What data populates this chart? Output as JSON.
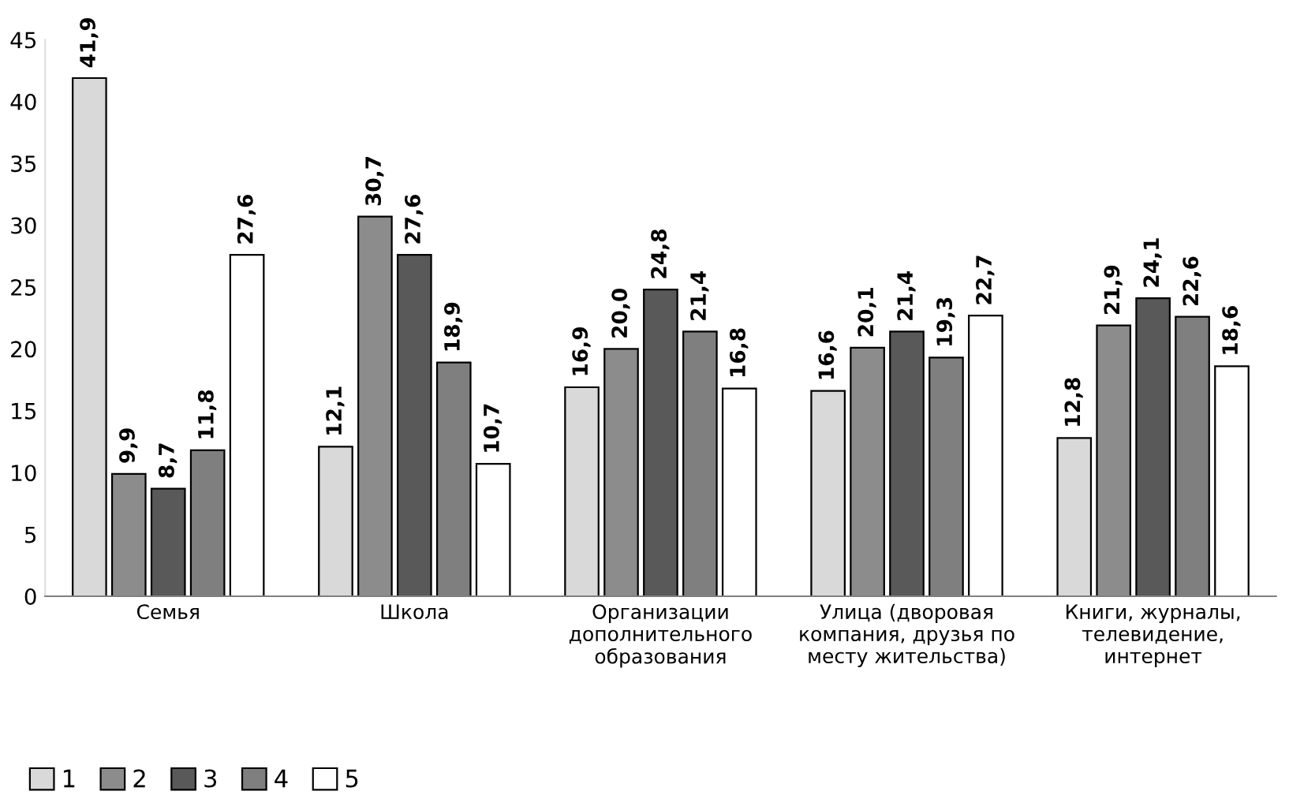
{
  "chart_data": {
    "type": "bar",
    "categories": [
      "Семья",
      "Школа",
      "Организации\nдополнительного\nобразования",
      "Улица (дворовая\nкомпания, друзья по\nместу жительства)",
      "Книги, журналы,\nтелевидение,\nинтернет"
    ],
    "series": [
      {
        "name": "1",
        "color": "#d9d9d9",
        "values": [
          41.9,
          12.1,
          16.9,
          16.6,
          12.8
        ],
        "value_labels": [
          "41,9",
          "12,1",
          "16,9",
          "16,6",
          "12,8"
        ]
      },
      {
        "name": "2",
        "color": "#8c8c8c",
        "values": [
          9.9,
          30.7,
          20.0,
          20.1,
          21.9
        ],
        "value_labels": [
          "9,9",
          "30,7",
          "20,0",
          "20,1",
          "21,9"
        ]
      },
      {
        "name": "3",
        "color": "#595959",
        "values": [
          8.7,
          27.6,
          24.8,
          21.4,
          24.1
        ],
        "value_labels": [
          "8,7",
          "27,6",
          "24,8",
          "21,4",
          "24,1"
        ]
      },
      {
        "name": "4",
        "color": "#7f7f7f",
        "values": [
          11.8,
          18.9,
          21.4,
          19.3,
          22.6
        ],
        "value_labels": [
          "11,8",
          "18,9",
          "21,4",
          "19,3",
          "22,6"
        ]
      },
      {
        "name": "5",
        "color": "#ffffff",
        "values": [
          27.6,
          10.7,
          16.8,
          22.7,
          18.6
        ],
        "value_labels": [
          "27,6",
          "10,7",
          "16,8",
          "22,7",
          "18,6"
        ]
      }
    ],
    "ylim": [
      0,
      45
    ],
    "yticks": [
      0,
      5,
      10,
      15,
      20,
      25,
      30,
      35,
      40,
      45
    ],
    "grid": false,
    "legend": "bottom left"
  }
}
